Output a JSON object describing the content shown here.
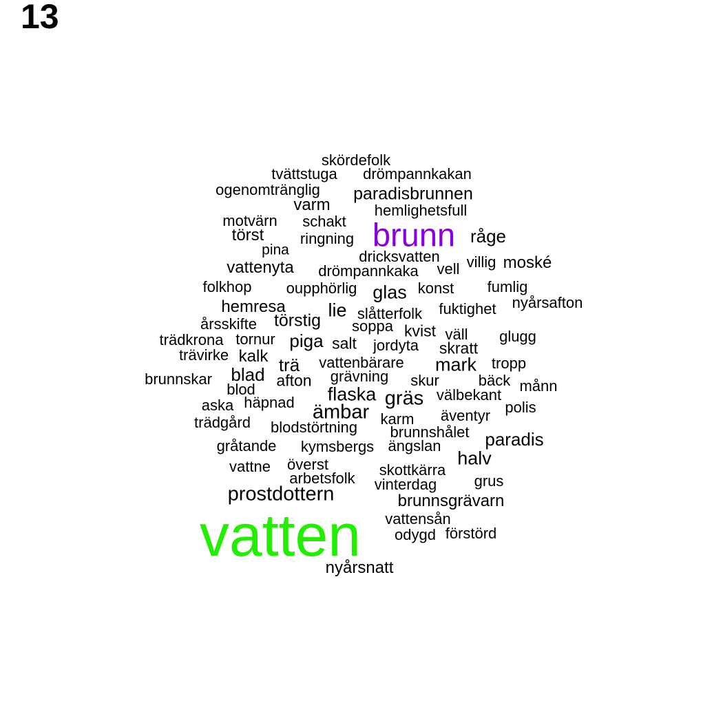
{
  "panel_label": "13",
  "colors": {
    "default": "#000000",
    "highlight_primary": "#22ee00",
    "highlight_secondary": "#8800dd"
  },
  "words": [
    {
      "text": "vatten",
      "color": "#22ee00"
    },
    {
      "text": "brunn",
      "color": "#8800dd"
    },
    {
      "text": "prostdottern"
    },
    {
      "text": "ämbar"
    },
    {
      "text": "gräs"
    },
    {
      "text": "flaska"
    },
    {
      "text": "halv"
    },
    {
      "text": "paradis"
    },
    {
      "text": "glas"
    },
    {
      "text": "lie"
    },
    {
      "text": "mark"
    },
    {
      "text": "paradisbrunnen"
    },
    {
      "text": "blad"
    },
    {
      "text": "trä"
    },
    {
      "text": "kalk"
    },
    {
      "text": "piga"
    },
    {
      "text": "törstig"
    },
    {
      "text": "råge"
    },
    {
      "text": "törst"
    },
    {
      "text": "varm"
    },
    {
      "text": "nyårsnatt"
    },
    {
      "text": "brunnsgrävarn"
    },
    {
      "text": "moské"
    },
    {
      "text": "vattenyta"
    },
    {
      "text": "hemresa"
    },
    {
      "text": "skratt"
    },
    {
      "text": "salt"
    },
    {
      "text": "kvist"
    },
    {
      "text": "afton"
    },
    {
      "text": "skördefolk"
    },
    {
      "text": "tvättstuga"
    },
    {
      "text": "drömpannkakan"
    },
    {
      "text": "ogenomtränglig"
    },
    {
      "text": "hemlighetsfull"
    },
    {
      "text": "motvärn"
    },
    {
      "text": "schakt"
    },
    {
      "text": "ringning"
    },
    {
      "text": "pina"
    },
    {
      "text": "dricksvatten"
    },
    {
      "text": "drömpannkaka"
    },
    {
      "text": "vell"
    },
    {
      "text": "villig"
    },
    {
      "text": "folkhop"
    },
    {
      "text": "oupphörlig"
    },
    {
      "text": "konst"
    },
    {
      "text": "fumlig"
    },
    {
      "text": "nyårsafton"
    },
    {
      "text": "slåtterfolk"
    },
    {
      "text": "fuktighet"
    },
    {
      "text": "årsskifte"
    },
    {
      "text": "soppa"
    },
    {
      "text": "väll"
    },
    {
      "text": "glugg"
    },
    {
      "text": "trädkrona"
    },
    {
      "text": "tornur"
    },
    {
      "text": "jordyta"
    },
    {
      "text": "trävirke"
    },
    {
      "text": "vattenbärare"
    },
    {
      "text": "tropp"
    },
    {
      "text": "brunnskar"
    },
    {
      "text": "grävning"
    },
    {
      "text": "skur"
    },
    {
      "text": "bäck"
    },
    {
      "text": "månn"
    },
    {
      "text": "blod"
    },
    {
      "text": "välbekant"
    },
    {
      "text": "aska"
    },
    {
      "text": "häpnad"
    },
    {
      "text": "polis"
    },
    {
      "text": "trädgård"
    },
    {
      "text": "karm"
    },
    {
      "text": "äventyr"
    },
    {
      "text": "blodstörtning"
    },
    {
      "text": "brunnshålet"
    },
    {
      "text": "gråtande"
    },
    {
      "text": "kymsbergs"
    },
    {
      "text": "ängslan"
    },
    {
      "text": "vattne"
    },
    {
      "text": "överst"
    },
    {
      "text": "skottkärra"
    },
    {
      "text": "arbetsfolk"
    },
    {
      "text": "grus"
    },
    {
      "text": "vinterdag"
    },
    {
      "text": "vattensån"
    },
    {
      "text": "odygd"
    },
    {
      "text": "förstörd"
    }
  ]
}
